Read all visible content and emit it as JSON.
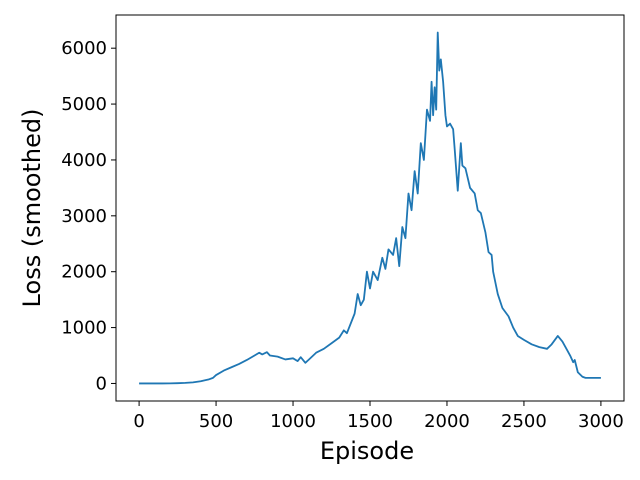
{
  "chart_data": {
    "type": "line",
    "x_label": "Episode",
    "y_label": "Loss (smoothed)",
    "x": [
      0,
      50,
      100,
      150,
      200,
      250,
      300,
      350,
      400,
      450,
      480,
      500,
      550,
      600,
      650,
      700,
      750,
      780,
      800,
      830,
      850,
      900,
      950,
      1000,
      1030,
      1050,
      1080,
      1100,
      1150,
      1200,
      1250,
      1300,
      1330,
      1350,
      1400,
      1420,
      1440,
      1460,
      1480,
      1500,
      1520,
      1550,
      1580,
      1600,
      1620,
      1650,
      1670,
      1690,
      1710,
      1730,
      1750,
      1770,
      1790,
      1810,
      1830,
      1850,
      1870,
      1890,
      1900,
      1910,
      1920,
      1930,
      1940,
      1950,
      1960,
      1975,
      1990,
      2000,
      2020,
      2040,
      2050,
      2070,
      2090,
      2100,
      2120,
      2150,
      2180,
      2200,
      2220,
      2250,
      2270,
      2290,
      2300,
      2330,
      2360,
      2400,
      2430,
      2460,
      2500,
      2550,
      2600,
      2650,
      2680,
      2720,
      2750,
      2780,
      2800,
      2820,
      2830,
      2850,
      2880,
      2900,
      2950,
      3000
    ],
    "series": [
      {
        "color": "#1f77b4",
        "values": [
          0,
          0,
          0,
          0,
          2,
          5,
          10,
          20,
          40,
          70,
          100,
          150,
          230,
          290,
          350,
          420,
          500,
          550,
          520,
          560,
          500,
          480,
          430,
          450,
          400,
          470,
          370,
          420,
          550,
          620,
          720,
          820,
          950,
          900,
          1250,
          1600,
          1400,
          1500,
          2000,
          1700,
          2000,
          1850,
          2250,
          2050,
          2400,
          2300,
          2600,
          2100,
          2800,
          2600,
          3400,
          3100,
          3800,
          3400,
          4300,
          4000,
          4900,
          4700,
          5400,
          4800,
          5300,
          4900,
          6280,
          5600,
          5800,
          5400,
          4800,
          4600,
          4650,
          4550,
          4200,
          3450,
          4300,
          3900,
          3850,
          3500,
          3400,
          3100,
          3050,
          2700,
          2350,
          2300,
          2000,
          1600,
          1350,
          1200,
          1000,
          850,
          780,
          700,
          650,
          620,
          700,
          850,
          750,
          600,
          500,
          380,
          420,
          200,
          120,
          100,
          100,
          100
        ]
      }
    ],
    "xlim": [
      -150,
      3150
    ],
    "ylim": [
      -314,
      6594
    ],
    "xticks": [
      0,
      500,
      1000,
      1500,
      2000,
      2500,
      3000
    ],
    "yticks": [
      0,
      1000,
      2000,
      3000,
      4000,
      5000,
      6000
    ]
  }
}
